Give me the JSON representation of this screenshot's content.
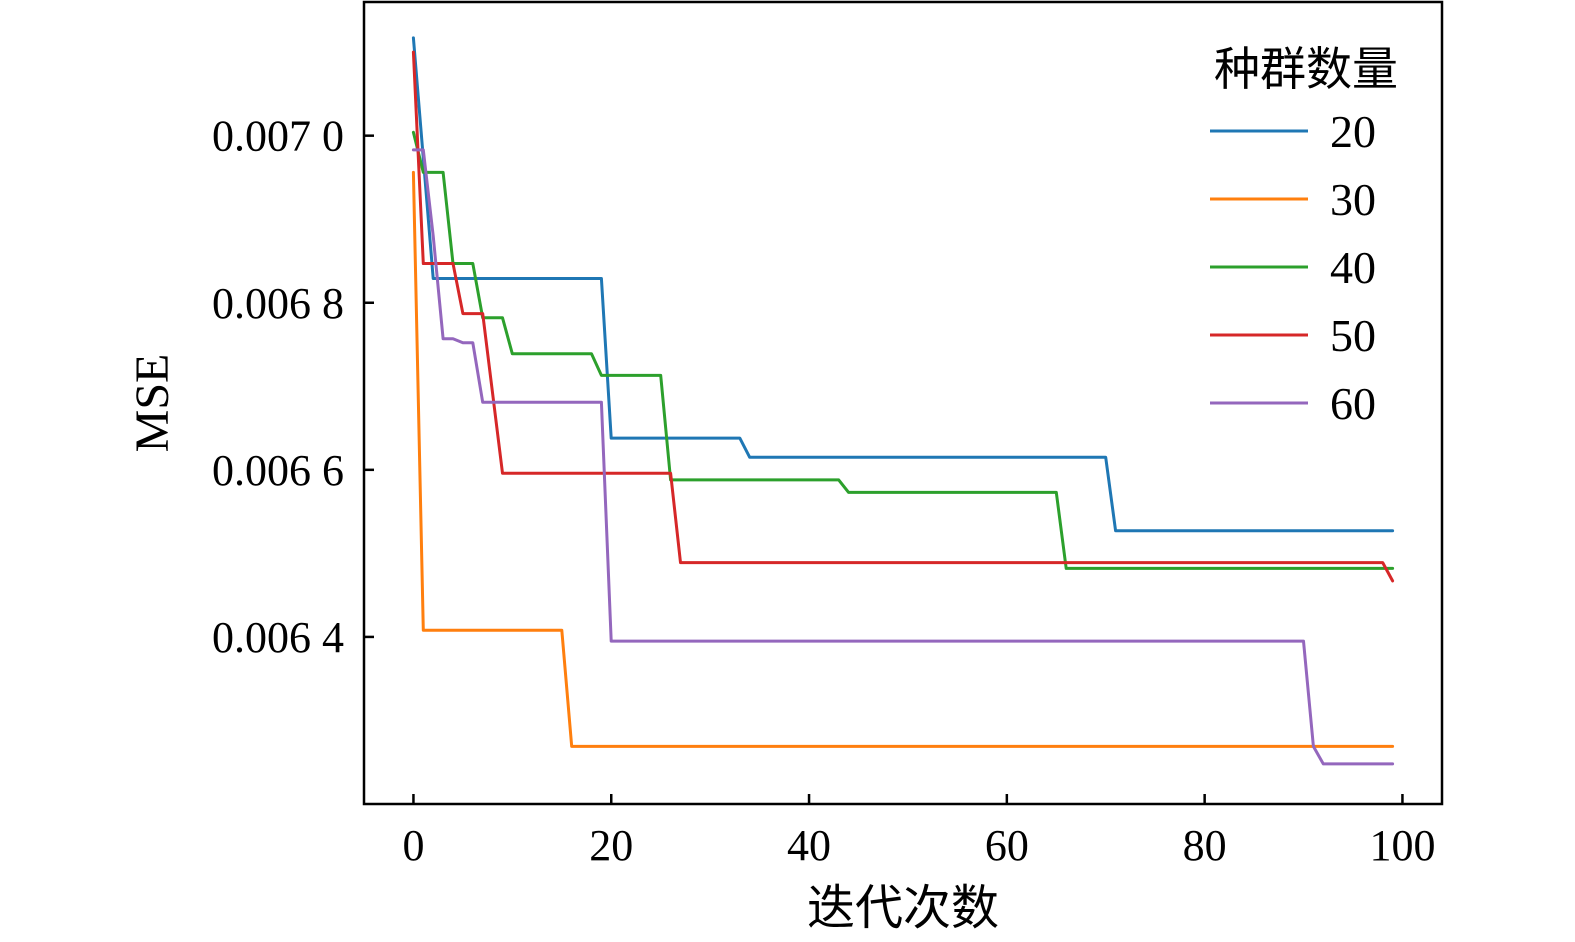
{
  "chart_data": {
    "type": "line",
    "xlabel": "迭代次数",
    "ylabel": "MSE",
    "xlim": [
      -5,
      104
    ],
    "ylim": [
      0.0062,
      0.00716
    ],
    "x_ticks": [
      0,
      20,
      40,
      60,
      80,
      100
    ],
    "x_tick_labels": [
      "0",
      "20",
      "40",
      "60",
      "80",
      "100"
    ],
    "y_ticks": [
      0.0064,
      0.0066,
      0.0068,
      0.007
    ],
    "y_tick_labels": [
      "0.006 4",
      "0.006 6",
      "0.006 8",
      "0.007 0"
    ],
    "grid": false,
    "legend_title": "种群数量",
    "legend_position": "top-right",
    "series": [
      {
        "name": "20",
        "color": "#1f77b4",
        "points": [
          [
            0,
            0.007117
          ],
          [
            2,
            0.006829
          ],
          [
            19,
            0.006829
          ],
          [
            20,
            0.006638
          ],
          [
            33,
            0.006638
          ],
          [
            34,
            0.006615
          ],
          [
            70,
            0.006615
          ],
          [
            71,
            0.006527
          ],
          [
            99,
            0.006527
          ]
        ]
      },
      {
        "name": "30",
        "color": "#ff7f0e",
        "points": [
          [
            0,
            0.006956
          ],
          [
            1,
            0.006408
          ],
          [
            15,
            0.006408
          ],
          [
            16,
            0.006269
          ],
          [
            99,
            0.006269
          ]
        ]
      },
      {
        "name": "40",
        "color": "#2ca02c",
        "points": [
          [
            0,
            0.007004
          ],
          [
            1,
            0.006956
          ],
          [
            3,
            0.006956
          ],
          [
            4,
            0.006847
          ],
          [
            6,
            0.006847
          ],
          [
            7,
            0.006782
          ],
          [
            9,
            0.006782
          ],
          [
            10,
            0.006739
          ],
          [
            18,
            0.006739
          ],
          [
            19,
            0.006713
          ],
          [
            25,
            0.006713
          ],
          [
            26,
            0.006588
          ],
          [
            43,
            0.006588
          ],
          [
            44,
            0.006573
          ],
          [
            65,
            0.006573
          ],
          [
            66,
            0.006482
          ],
          [
            99,
            0.006482
          ]
        ]
      },
      {
        "name": "50",
        "color": "#d62728",
        "points": [
          [
            0,
            0.0071
          ],
          [
            1,
            0.006847
          ],
          [
            4,
            0.006847
          ],
          [
            5,
            0.006787
          ],
          [
            7,
            0.006787
          ],
          [
            9,
            0.006596
          ],
          [
            26,
            0.006596
          ],
          [
            27,
            0.006489
          ],
          [
            98,
            0.006489
          ],
          [
            99,
            0.006467
          ]
        ]
      },
      {
        "name": "60",
        "color": "#9467bd",
        "points": [
          [
            0,
            0.006983
          ],
          [
            1,
            0.006983
          ],
          [
            2,
            0.00688
          ],
          [
            3,
            0.006757
          ],
          [
            4,
            0.006757
          ],
          [
            5,
            0.006752
          ],
          [
            6,
            0.006752
          ],
          [
            7,
            0.006681
          ],
          [
            19,
            0.006681
          ],
          [
            20,
            0.006395
          ],
          [
            90,
            0.006395
          ],
          [
            91,
            0.006269
          ],
          [
            92,
            0.006248
          ],
          [
            99,
            0.006248
          ]
        ]
      }
    ]
  }
}
